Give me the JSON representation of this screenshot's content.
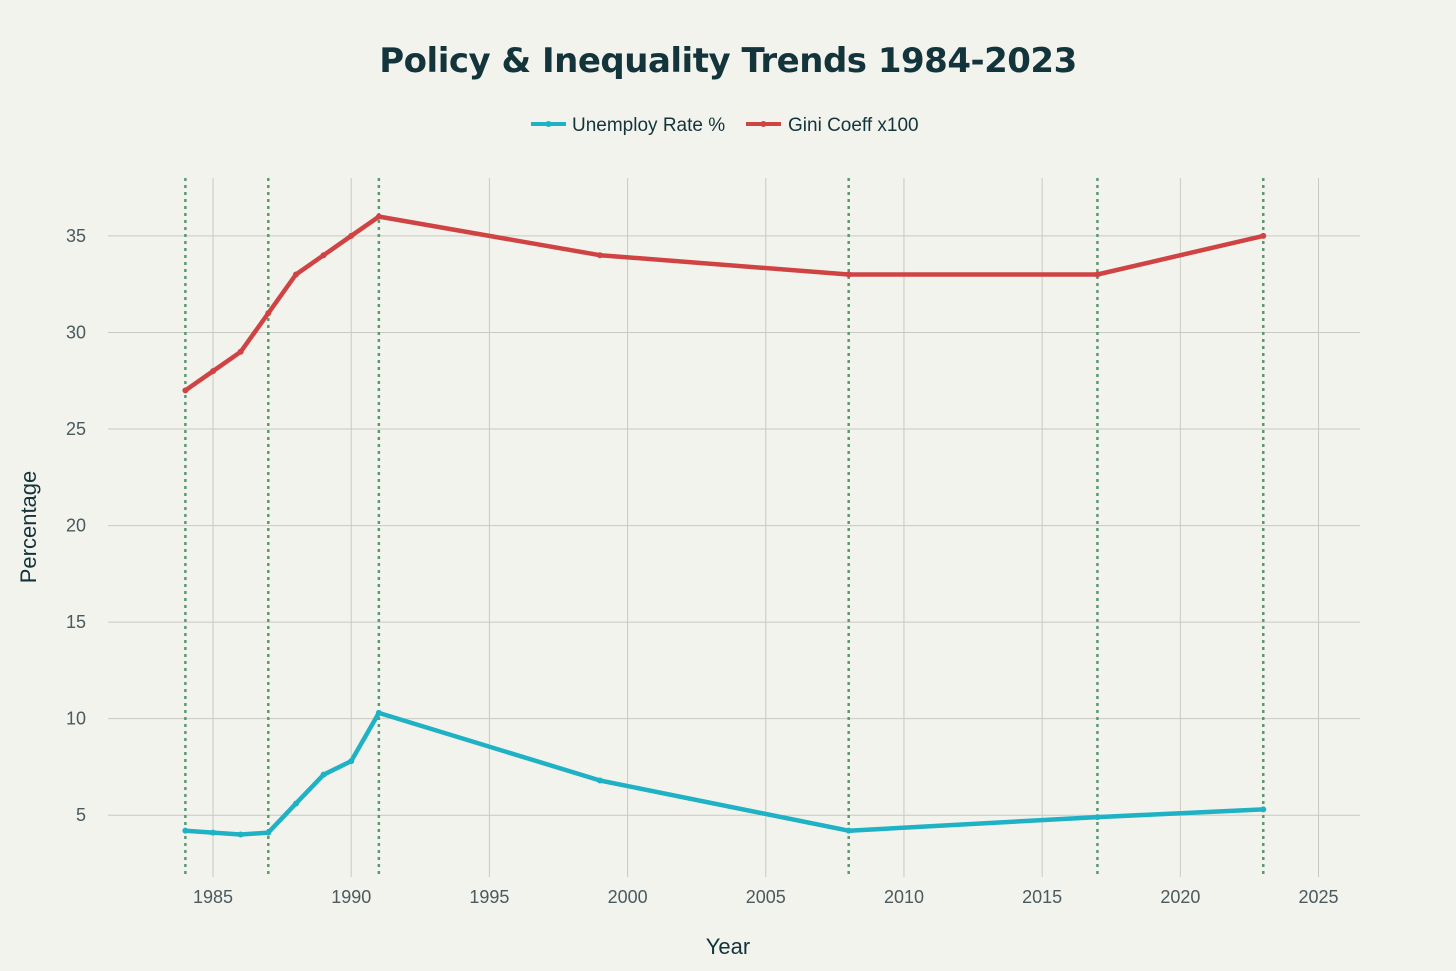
{
  "chart_data": {
    "type": "line",
    "title": "Policy & Inequality Trends 1984-2023",
    "xlabel": "Year",
    "ylabel": "Percentage",
    "xlim": [
      1981.2,
      2026.5
    ],
    "ylim": [
      1.8,
      38
    ],
    "x_ticks": [
      1985,
      1990,
      1995,
      2000,
      2005,
      2010,
      2015,
      2020,
      2025
    ],
    "y_ticks": [
      5,
      10,
      15,
      20,
      25,
      30,
      35
    ],
    "grid": true,
    "legend_position": "top-center",
    "series": [
      {
        "name": "Unemploy Rate %",
        "color": "#1fb1c4",
        "x": [
          1984,
          1985,
          1986,
          1987,
          1988,
          1989,
          1990,
          1991,
          1999,
          2008,
          2017,
          2023
        ],
        "values": [
          4.2,
          4.1,
          4.0,
          4.1,
          5.6,
          7.1,
          7.8,
          10.3,
          6.8,
          4.2,
          4.9,
          5.3
        ]
      },
      {
        "name": "Gini Coeff x100",
        "color": "#d04343",
        "x": [
          1984,
          1985,
          1986,
          1987,
          1988,
          1989,
          1990,
          1991,
          1999,
          2008,
          2017,
          2023
        ],
        "values": [
          27,
          28,
          29,
          31,
          33,
          34,
          35,
          36,
          34,
          33,
          33,
          35
        ]
      }
    ],
    "event_lines": {
      "color": "#5a9a6e",
      "years": [
        1984,
        1987,
        1991,
        2008,
        2017,
        2023
      ]
    }
  }
}
